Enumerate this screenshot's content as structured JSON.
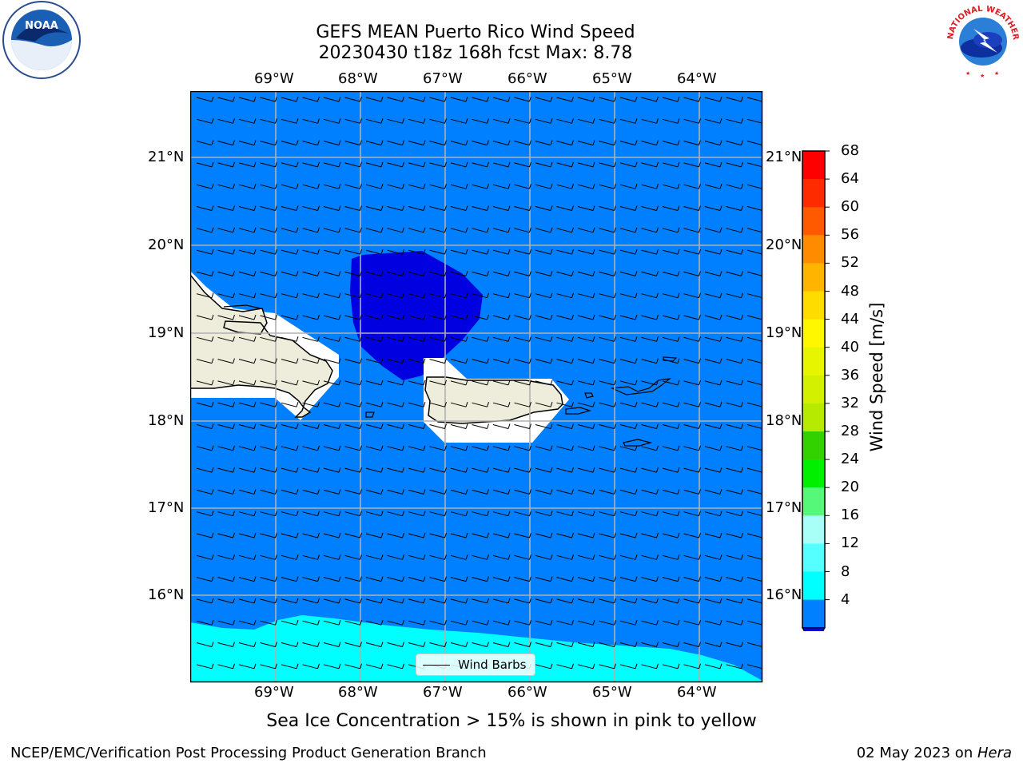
{
  "title_line1": "GEFS MEAN Puerto Rico Wind Speed",
  "title_line2": "20230430 t18z 168h fcst   Max: 8.78",
  "map": {
    "lon_ticks": [
      "69°W",
      "68°W",
      "67°W",
      "66°W",
      "65°W",
      "64°W"
    ],
    "lat_ticks": [
      "21°N",
      "20°N",
      "19°N",
      "18°N",
      "17°N",
      "16°N"
    ],
    "colors": {
      "ocean": "#0080ff",
      "calm": "#0000e0",
      "band": "#00ffff",
      "land": "#eeeddc",
      "ice_mask": "#ffffff"
    }
  },
  "colorbar": {
    "label": "Wind Speed [m/s]",
    "levels": [
      "68",
      "64",
      "60",
      "56",
      "52",
      "48",
      "44",
      "40",
      "36",
      "32",
      "28",
      "24",
      "20",
      "16",
      "12",
      "8",
      "4"
    ],
    "colors": [
      "#ff0000",
      "#ff2b00",
      "#ff5a00",
      "#ff8c00",
      "#ffb400",
      "#ffdc00",
      "#fff700",
      "#e8f500",
      "#d2f000",
      "#b6ea00",
      "#32d200",
      "#00f000",
      "#55f878",
      "#a8fff8",
      "#55ffff",
      "#00ffff",
      "#0080ff"
    ],
    "under_color": "#0000ff"
  },
  "legend": {
    "label": "Wind Barbs"
  },
  "note": "Sea Ice Concentration > 15% is shown in pink to yellow",
  "footer_left": "NCEP/EMC/Verification Post Processing Product Generation Branch",
  "footer_date": "02 May 2023 on ",
  "footer_host": "Hera",
  "logos": {
    "noaa": "NOAA",
    "nws": "NATIONAL WEATHER SERVICE"
  }
}
